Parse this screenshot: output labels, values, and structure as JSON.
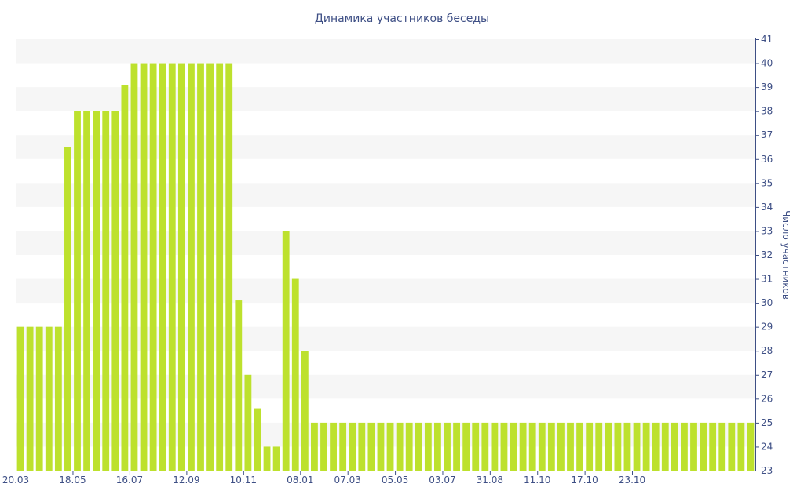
{
  "chart_data": {
    "type": "bar",
    "title": "Динамика участников беседы",
    "xlabel": "",
    "ylabel": "Число участников",
    "ylim": [
      23,
      41
    ],
    "y_ticks": [
      23,
      24,
      25,
      26,
      27,
      28,
      29,
      30,
      31,
      32,
      33,
      34,
      35,
      36,
      37,
      38,
      39,
      40,
      41
    ],
    "y_axis_side": "right",
    "grid": "alternating horizontal bands",
    "x_tick_labels": [
      {
        "label": "20.03",
        "index": 0
      },
      {
        "label": "18.05",
        "index": 6
      },
      {
        "label": "16.07",
        "index": 12
      },
      {
        "label": "12.09",
        "index": 18
      },
      {
        "label": "10.11",
        "index": 24
      },
      {
        "label": "08.01",
        "index": 30
      },
      {
        "label": "07.03",
        "index": 35
      },
      {
        "label": "05.05",
        "index": 40
      },
      {
        "label": "03.07",
        "index": 45
      },
      {
        "label": "31.08",
        "index": 50
      },
      {
        "label": "11.10",
        "index": 55
      },
      {
        "label": "17.10",
        "index": 60
      },
      {
        "label": "23.10",
        "index": 65
      }
    ],
    "values": [
      29,
      29,
      29,
      29,
      29,
      36.5,
      38,
      38,
      38,
      38,
      38,
      39.1,
      40,
      40,
      40,
      40,
      40,
      40,
      40,
      40,
      40,
      40,
      40,
      30.1,
      27,
      25.6,
      24,
      24,
      33,
      31,
      28,
      25,
      25,
      25,
      25,
      25,
      25,
      25,
      25,
      25,
      25,
      25,
      25,
      25,
      25,
      25,
      25,
      25,
      25,
      25,
      25,
      25,
      25,
      25,
      25,
      25,
      25,
      25,
      25,
      25,
      25,
      25,
      25,
      25,
      25,
      25,
      25,
      25,
      25,
      25,
      25,
      25,
      25,
      25,
      25,
      25,
      25,
      25
    ],
    "bar_color": "#bde12d"
  }
}
